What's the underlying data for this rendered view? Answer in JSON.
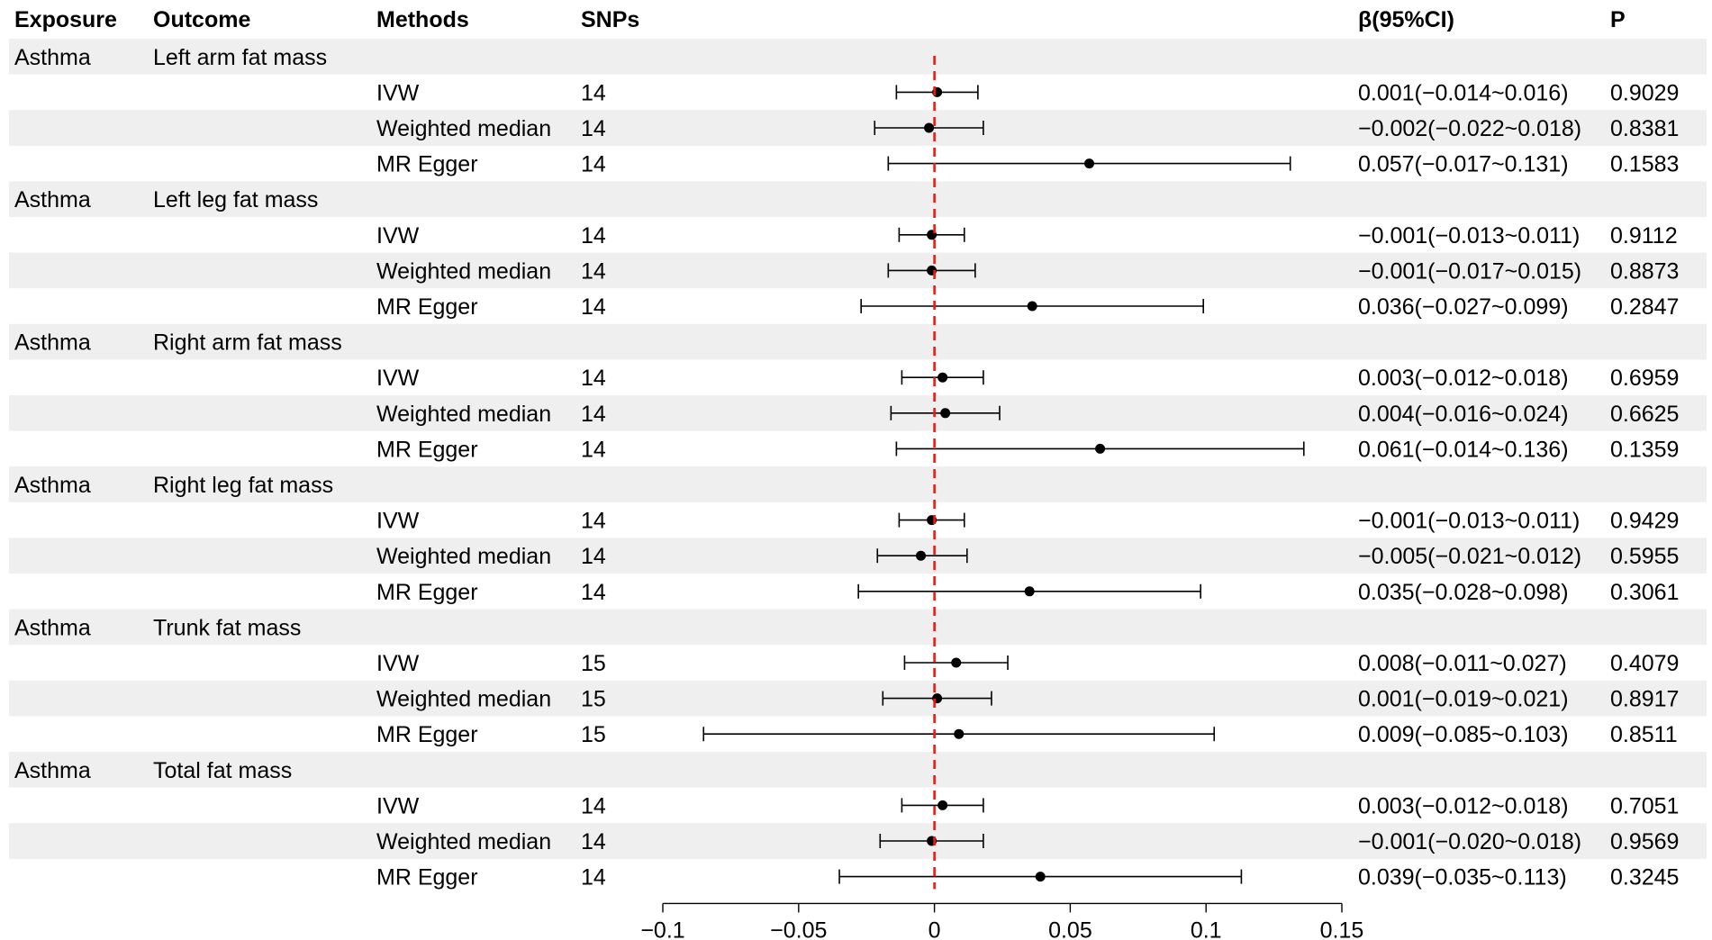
{
  "columns": {
    "exposure": "Exposure",
    "outcome": "Outcome",
    "methods": "Methods",
    "snps": "SNPs",
    "beta_ci": "β(95%CI)",
    "p": "P"
  },
  "chart_data": {
    "type": "forest",
    "title": "",
    "xlabel": "",
    "ylabel": "",
    "xlim": [
      -0.1,
      0.15
    ],
    "xticks": [
      -0.1,
      -0.05,
      0,
      0.05,
      0.1,
      0.15
    ],
    "xtick_labels": [
      "−0.1",
      "−0.05",
      "0",
      "0.05",
      "0.1",
      "0.15"
    ],
    "reference_line": 0,
    "reference_color": "#e0201b",
    "point_color": "#000000",
    "groups": [
      {
        "exposure": "Asthma",
        "outcome": "Left arm fat mass",
        "rows": [
          {
            "method": "IVW",
            "snps": "14",
            "beta": 0.001,
            "lower": -0.014,
            "upper": 0.016,
            "ci_text": "0.001(−0.014~0.016)",
            "p": "0.9029"
          },
          {
            "method": "Weighted median",
            "snps": "14",
            "beta": -0.002,
            "lower": -0.022,
            "upper": 0.018,
            "ci_text": "−0.002(−0.022~0.018)",
            "p": "0.8381"
          },
          {
            "method": "MR Egger",
            "snps": "14",
            "beta": 0.057,
            "lower": -0.017,
            "upper": 0.131,
            "ci_text": "0.057(−0.017~0.131)",
            "p": "0.1583"
          }
        ]
      },
      {
        "exposure": "Asthma",
        "outcome": "Left leg fat mass",
        "rows": [
          {
            "method": "IVW",
            "snps": "14",
            "beta": -0.001,
            "lower": -0.013,
            "upper": 0.011,
            "ci_text": "−0.001(−0.013~0.011)",
            "p": "0.9112"
          },
          {
            "method": "Weighted median",
            "snps": "14",
            "beta": -0.001,
            "lower": -0.017,
            "upper": 0.015,
            "ci_text": "−0.001(−0.017~0.015)",
            "p": "0.8873"
          },
          {
            "method": "MR Egger",
            "snps": "14",
            "beta": 0.036,
            "lower": -0.027,
            "upper": 0.099,
            "ci_text": "0.036(−0.027~0.099)",
            "p": "0.2847"
          }
        ]
      },
      {
        "exposure": "Asthma",
        "outcome": "Right arm fat mass",
        "rows": [
          {
            "method": "IVW",
            "snps": "14",
            "beta": 0.003,
            "lower": -0.012,
            "upper": 0.018,
            "ci_text": "0.003(−0.012~0.018)",
            "p": "0.6959"
          },
          {
            "method": "Weighted median",
            "snps": "14",
            "beta": 0.004,
            "lower": -0.016,
            "upper": 0.024,
            "ci_text": "0.004(−0.016~0.024)",
            "p": "0.6625"
          },
          {
            "method": "MR Egger",
            "snps": "14",
            "beta": 0.061,
            "lower": -0.014,
            "upper": 0.136,
            "ci_text": "0.061(−0.014~0.136)",
            "p": "0.1359"
          }
        ]
      },
      {
        "exposure": "Asthma",
        "outcome": "Right leg fat mass",
        "rows": [
          {
            "method": "IVW",
            "snps": "14",
            "beta": -0.001,
            "lower": -0.013,
            "upper": 0.011,
            "ci_text": "−0.001(−0.013~0.011)",
            "p": "0.9429"
          },
          {
            "method": "Weighted median",
            "snps": "14",
            "beta": -0.005,
            "lower": -0.021,
            "upper": 0.012,
            "ci_text": "−0.005(−0.021~0.012)",
            "p": "0.5955"
          },
          {
            "method": "MR Egger",
            "snps": "14",
            "beta": 0.035,
            "lower": -0.028,
            "upper": 0.098,
            "ci_text": "0.035(−0.028~0.098)",
            "p": "0.3061"
          }
        ]
      },
      {
        "exposure": "Asthma",
        "outcome": "Trunk fat mass",
        "rows": [
          {
            "method": "IVW",
            "snps": "15",
            "beta": 0.008,
            "lower": -0.011,
            "upper": 0.027,
            "ci_text": "0.008(−0.011~0.027)",
            "p": "0.4079"
          },
          {
            "method": "Weighted median",
            "snps": "15",
            "beta": 0.001,
            "lower": -0.019,
            "upper": 0.021,
            "ci_text": "0.001(−0.019~0.021)",
            "p": "0.8917"
          },
          {
            "method": "MR Egger",
            "snps": "15",
            "beta": 0.009,
            "lower": -0.085,
            "upper": 0.103,
            "ci_text": "0.009(−0.085~0.103)",
            "p": "0.8511"
          }
        ]
      },
      {
        "exposure": "Asthma",
        "outcome": "Total fat mass",
        "rows": [
          {
            "method": "IVW",
            "snps": "14",
            "beta": 0.003,
            "lower": -0.012,
            "upper": 0.018,
            "ci_text": "0.003(−0.012~0.018)",
            "p": "0.7051"
          },
          {
            "method": "Weighted median",
            "snps": "14",
            "beta": -0.001,
            "lower": -0.02,
            "upper": 0.018,
            "ci_text": "−0.001(−0.020~0.018)",
            "p": "0.9569"
          },
          {
            "method": "MR Egger",
            "snps": "14",
            "beta": 0.039,
            "lower": -0.035,
            "upper": 0.113,
            "ci_text": "0.039(−0.035~0.113)",
            "p": "0.3245"
          }
        ]
      }
    ]
  }
}
